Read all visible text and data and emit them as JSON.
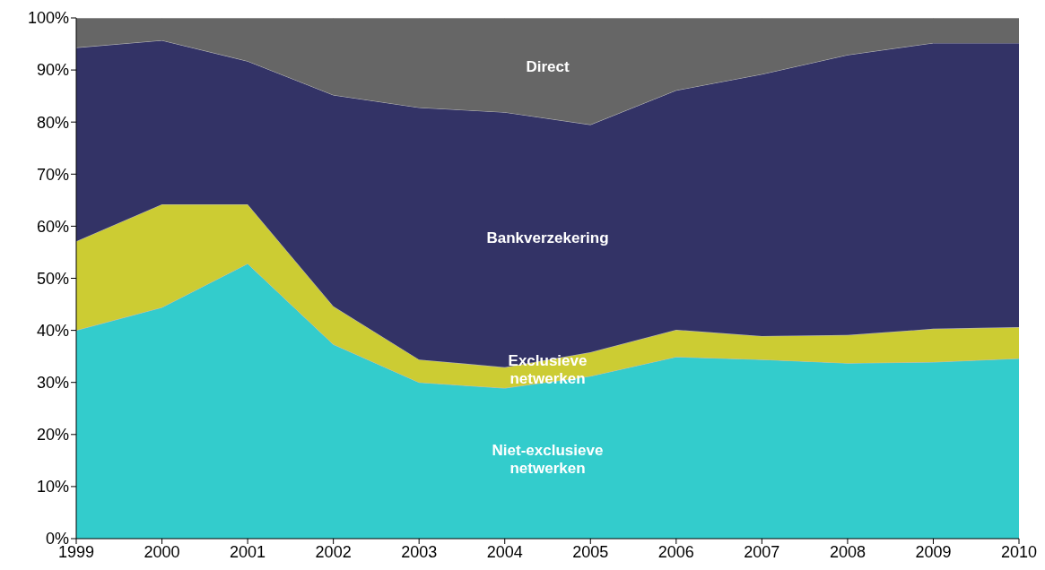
{
  "chart_data": {
    "type": "area",
    "stacked": true,
    "categories": [
      "1999",
      "2000",
      "2001",
      "2002",
      "2003",
      "2004",
      "2005",
      "2006",
      "2007",
      "2008",
      "2009",
      "2010"
    ],
    "series": [
      {
        "name": "Niet-exclusieve netwerken",
        "color": "#33cccc",
        "values": [
          40,
          44.4,
          52.8,
          37.3,
          30,
          28.9,
          31.2,
          34.9,
          34.4,
          33.7,
          33.9,
          34.6
        ]
      },
      {
        "name": "Exclusieve netwerken",
        "color": "#cccc33",
        "values": [
          17.1,
          19.8,
          11.4,
          7.3,
          4.4,
          4.0,
          4.6,
          5.2,
          4.5,
          5.4,
          6.4,
          6.0
        ]
      },
      {
        "name": "Bankverzekering",
        "color": "#333366",
        "values": [
          37.2,
          31.5,
          27.5,
          40.6,
          48.4,
          49.0,
          43.7,
          46.0,
          50.3,
          53.8,
          54.9,
          54.6
        ]
      },
      {
        "name": "Direct",
        "color": "#666666",
        "values": [
          5.7,
          4.3,
          8.3,
          14.8,
          17.2,
          18.1,
          20.5,
          13.9,
          10.8,
          7.1,
          4.8,
          4.8
        ]
      }
    ],
    "ylim": [
      0,
      100
    ],
    "yticks": [
      {
        "value": 0,
        "label": "0%"
      },
      {
        "value": 10,
        "label": "10%"
      },
      {
        "value": 20,
        "label": "20%"
      },
      {
        "value": 30,
        "label": "30%"
      },
      {
        "value": 40,
        "label": "40%"
      },
      {
        "value": 50,
        "label": "50%"
      },
      {
        "value": 60,
        "label": "60%"
      },
      {
        "value": 70,
        "label": "70%"
      },
      {
        "value": 80,
        "label": "80%"
      },
      {
        "value": 90,
        "label": "90%"
      },
      {
        "value": 100,
        "label": "100%"
      }
    ],
    "grid": false
  }
}
